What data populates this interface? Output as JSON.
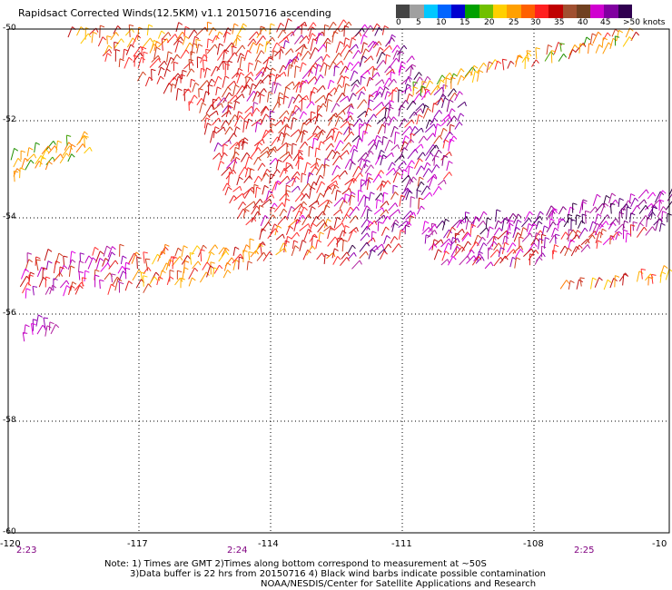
{
  "title": "Rapidsact Corrected Winds(12.5KM) v1.1 20150716 ascending",
  "legend": {
    "colors": [
      "#444444",
      "#a0a0a0",
      "#00c8ff",
      "#0064ff",
      "#0000d0",
      "#00a000",
      "#70c000",
      "#ffd000",
      "#ffa000",
      "#ff6000",
      "#ff2020",
      "#c00000",
      "#a05030",
      "#704020",
      "#d000d0",
      "#8000a0",
      "#300050"
    ],
    "labels": [
      "0",
      "5",
      "10",
      "15",
      "20",
      "25",
      "30",
      "35",
      "40",
      "45",
      ">50 knots"
    ]
  },
  "axes": {
    "lat_labels": [
      "-50",
      "-52",
      "-54",
      "-56",
      "-58",
      "-60"
    ],
    "lon_labels": [
      "-120",
      "-117",
      "-114",
      "-111",
      "-108",
      "-10"
    ]
  },
  "times": [
    "2:23",
    "2:24",
    "2:25"
  ],
  "notes": [
    "Note: 1) Times are GMT 2)Times along bottom correspond to measurement at ~50S",
    "3)Data buffer is 22 hrs from 20150716 4) Black wind barbs indicate possible contamination",
    "NOAA/NESDIS/Center for Satellite Applications and Research"
  ]
}
